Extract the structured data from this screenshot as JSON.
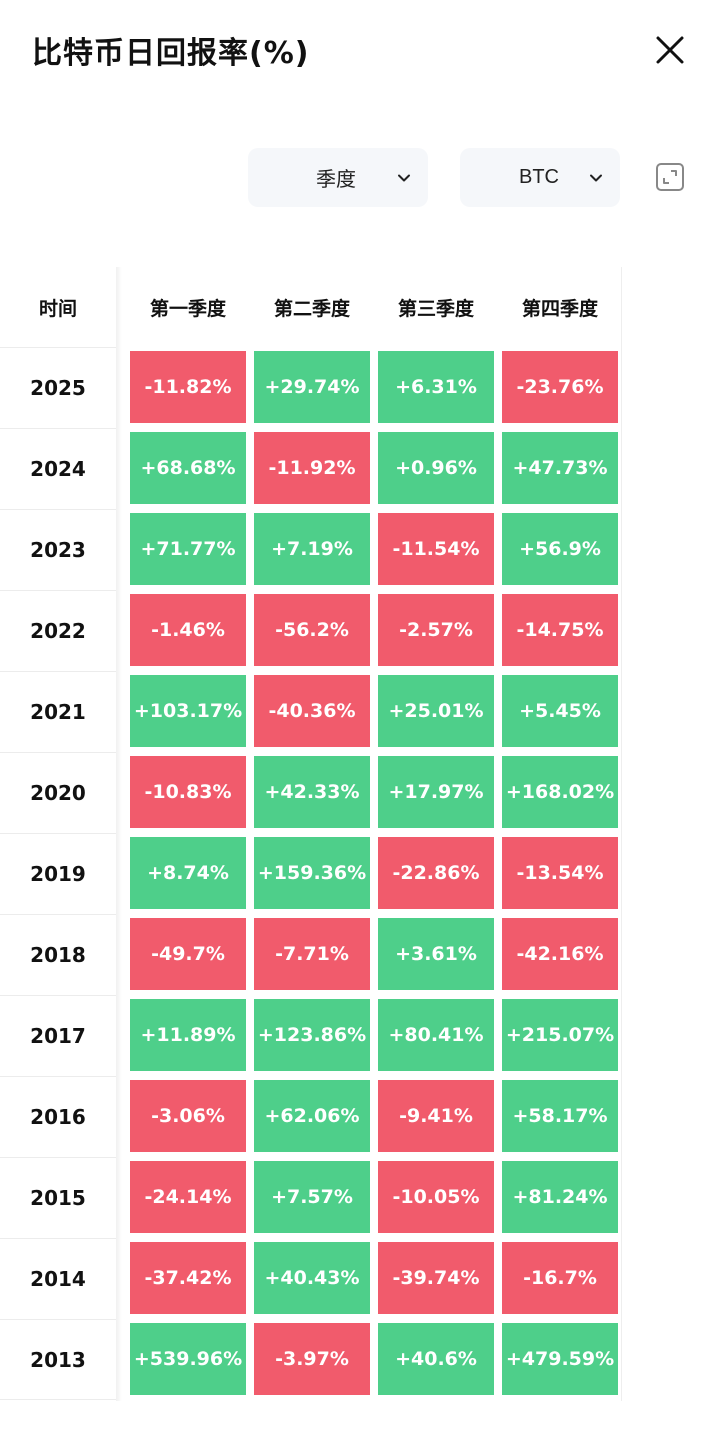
{
  "header": {
    "title": "比特币日回报率(%)"
  },
  "filters": {
    "period": "季度",
    "coin": "BTC"
  },
  "icons": {
    "close": "close-icon",
    "chevron": "chevron-down-icon",
    "expand": "expand-icon"
  },
  "colors": {
    "up": "#4ecf8a",
    "down": "#f15b6c"
  },
  "table": {
    "time_header": "时间",
    "columns": [
      "第一季度",
      "第二季度",
      "第三季度",
      "第四季度"
    ],
    "rows": [
      {
        "year": "2025",
        "values": [
          "-11.82%",
          "+29.74%",
          "+6.31%",
          "-23.76%"
        ]
      },
      {
        "year": "2024",
        "values": [
          "+68.68%",
          "-11.92%",
          "+0.96%",
          "+47.73%"
        ]
      },
      {
        "year": "2023",
        "values": [
          "+71.77%",
          "+7.19%",
          "-11.54%",
          "+56.9%"
        ]
      },
      {
        "year": "2022",
        "values": [
          "-1.46%",
          "-56.2%",
          "-2.57%",
          "-14.75%"
        ]
      },
      {
        "year": "2021",
        "values": [
          "+103.17%",
          "-40.36%",
          "+25.01%",
          "+5.45%"
        ]
      },
      {
        "year": "2020",
        "values": [
          "-10.83%",
          "+42.33%",
          "+17.97%",
          "+168.02%"
        ]
      },
      {
        "year": "2019",
        "values": [
          "+8.74%",
          "+159.36%",
          "-22.86%",
          "-13.54%"
        ]
      },
      {
        "year": "2018",
        "values": [
          "-49.7%",
          "-7.71%",
          "+3.61%",
          "-42.16%"
        ]
      },
      {
        "year": "2017",
        "values": [
          "+11.89%",
          "+123.86%",
          "+80.41%",
          "+215.07%"
        ]
      },
      {
        "year": "2016",
        "values": [
          "-3.06%",
          "+62.06%",
          "-9.41%",
          "+58.17%"
        ]
      },
      {
        "year": "2015",
        "values": [
          "-24.14%",
          "+7.57%",
          "-10.05%",
          "+81.24%"
        ]
      },
      {
        "year": "2014",
        "values": [
          "-37.42%",
          "+40.43%",
          "-39.74%",
          "-16.7%"
        ]
      },
      {
        "year": "2013",
        "values": [
          "+539.96%",
          "-3.97%",
          "+40.6%",
          "+479.59%"
        ]
      }
    ]
  }
}
